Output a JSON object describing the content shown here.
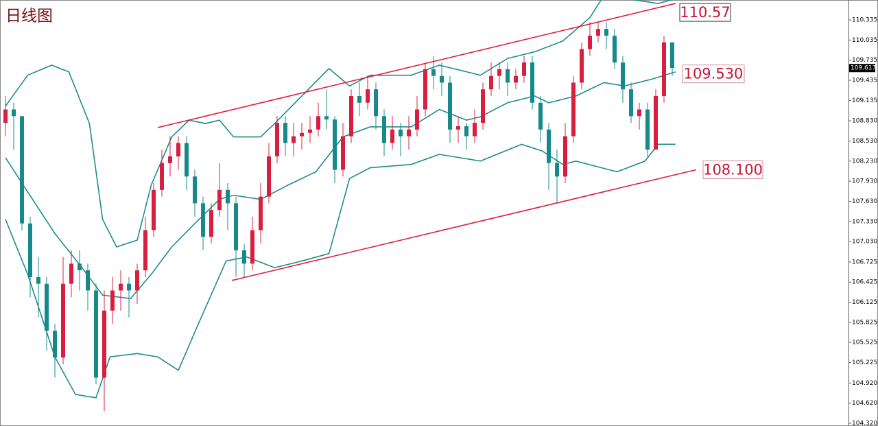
{
  "chart_data": {
    "type": "candlestick",
    "title": "日线图",
    "up_color": "#d91f3f",
    "down_color": "#17898a",
    "open": [
      108.8,
      109.0,
      108.9,
      107.3,
      106.5,
      106.4,
      105.7,
      105.3,
      106.4,
      106.7,
      106.6,
      106.3,
      105.0,
      106.0,
      106.3,
      106.4,
      106.3,
      106.6,
      107.2,
      107.8,
      108.2,
      108.3,
      108.5,
      108.0,
      107.6,
      107.1,
      107.5,
      107.8,
      107.6,
      106.9,
      106.7,
      107.2,
      107.7,
      108.3,
      108.8,
      108.5,
      108.6,
      108.65,
      108.7,
      108.9,
      108.85,
      108.1,
      108.6,
      109.2,
      109.1,
      109.3,
      108.9,
      108.5,
      108.7,
      108.6,
      108.7,
      109.0,
      109.6,
      109.5,
      109.4,
      108.7,
      108.75,
      108.6,
      108.8,
      109.3,
      109.5,
      109.6,
      109.4,
      109.5,
      109.7,
      109.1,
      108.7,
      108.2,
      108.0,
      108.6,
      109.4,
      109.9,
      110.1,
      110.2,
      110.1,
      109.7,
      109.3,
      108.9,
      109.0,
      108.4,
      109.2,
      110.0
    ],
    "high": [
      109.2,
      109.1,
      108.9,
      107.4,
      106.8,
      106.5,
      105.8,
      106.8,
      106.9,
      106.9,
      106.7,
      106.4,
      106.3,
      106.5,
      106.6,
      106.5,
      106.7,
      107.4,
      107.9,
      108.4,
      108.6,
      108.6,
      108.6,
      108.1,
      107.7,
      107.6,
      108.2,
      107.9,
      107.7,
      107.0,
      107.4,
      107.9,
      108.5,
      108.9,
      108.9,
      108.8,
      108.8,
      108.9,
      109.1,
      109.3,
      108.9,
      108.8,
      109.3,
      109.4,
      109.5,
      109.4,
      109.0,
      108.9,
      108.8,
      108.9,
      109.2,
      109.7,
      109.8,
      109.7,
      109.5,
      108.9,
      108.8,
      109.0,
      109.4,
      109.7,
      109.7,
      109.7,
      109.6,
      109.8,
      109.8,
      109.2,
      108.8,
      108.4,
      108.8,
      109.5,
      110.0,
      110.3,
      110.3,
      110.3,
      110.2,
      109.8,
      109.4,
      109.1,
      109.1,
      109.3,
      110.1,
      110.0
    ],
    "low": [
      108.6,
      108.4,
      107.2,
      106.2,
      105.9,
      105.4,
      105.0,
      105.2,
      106.2,
      106.3,
      106.0,
      104.9,
      104.5,
      105.8,
      106.0,
      105.9,
      106.1,
      106.5,
      107.1,
      107.7,
      108.0,
      108.1,
      107.8,
      107.4,
      106.9,
      107.0,
      107.4,
      107.2,
      106.5,
      106.5,
      106.6,
      107.0,
      107.6,
      108.2,
      108.3,
      108.3,
      108.4,
      108.5,
      108.6,
      108.7,
      107.9,
      108.0,
      108.5,
      108.9,
      109.0,
      108.7,
      108.3,
      108.4,
      108.3,
      108.4,
      108.6,
      108.9,
      109.3,
      109.2,
      108.5,
      108.5,
      108.4,
      108.5,
      108.7,
      109.2,
      109.3,
      109.2,
      109.3,
      109.4,
      109.0,
      108.5,
      107.8,
      107.6,
      107.9,
      108.5,
      109.3,
      109.8,
      110.0,
      109.9,
      109.6,
      109.1,
      108.8,
      108.7,
      108.3,
      108.4,
      109.1,
      109.5
    ],
    "close": [
      109.0,
      108.9,
      107.3,
      106.5,
      106.4,
      105.7,
      105.3,
      106.4,
      106.7,
      106.6,
      106.3,
      105.0,
      106.0,
      106.3,
      106.4,
      106.3,
      106.6,
      107.2,
      107.8,
      108.2,
      108.3,
      108.5,
      108.0,
      107.6,
      107.1,
      107.5,
      107.8,
      107.6,
      106.9,
      106.7,
      107.2,
      107.7,
      108.3,
      108.8,
      108.5,
      108.6,
      108.65,
      108.7,
      108.9,
      108.85,
      108.1,
      108.6,
      109.2,
      109.1,
      109.3,
      108.9,
      108.5,
      108.7,
      108.6,
      108.7,
      109.0,
      109.6,
      109.5,
      109.4,
      108.7,
      108.75,
      108.6,
      108.8,
      109.3,
      109.5,
      109.6,
      109.4,
      109.5,
      109.7,
      109.1,
      108.7,
      108.2,
      108.0,
      108.6,
      109.4,
      109.9,
      110.1,
      110.2,
      110.1,
      109.7,
      109.3,
      108.9,
      109.0,
      108.4,
      109.2,
      110.0,
      109.617
    ],
    "bands": [
      {
        "color": "#1e8c8c",
        "x": [
          0,
          2.7,
          5.6,
          7.7,
          10.2,
          11.8,
          13.5,
          16,
          17.7,
          20.2,
          22.3,
          24.3,
          26,
          27.7,
          31,
          32.7,
          36,
          39.3,
          41.8,
          44.3,
          49.3,
          52.7,
          57.7,
          61,
          64.3,
          67.7,
          71,
          72.7,
          79.3,
          81.4
        ],
        "values": [
          109.05,
          109.51,
          109.66,
          109.56,
          108.79,
          107.36,
          106.95,
          107.05,
          107.87,
          108.59,
          108.84,
          108.79,
          108.84,
          108.59,
          108.59,
          108.79,
          109.2,
          109.61,
          109.35,
          109.51,
          109.51,
          109.66,
          109.51,
          109.76,
          109.86,
          110.02,
          110.37,
          110.7,
          110.58,
          110.65
        ]
      },
      {
        "color": "#1e8c8c",
        "x": [
          0,
          2.7,
          6,
          9.3,
          11.8,
          15.2,
          17.7,
          20.2,
          22.7,
          26,
          27.7,
          31,
          34.3,
          37.7,
          41,
          44.3,
          49.3,
          52.7,
          56,
          57.7,
          61,
          64.3,
          66,
          69.3,
          72.7,
          75.2,
          78.5,
          81.4
        ],
        "values": [
          108.28,
          107.77,
          107.15,
          106.64,
          106.23,
          106.18,
          106.54,
          106.95,
          107.26,
          107.66,
          107.72,
          107.66,
          107.87,
          108.07,
          108.59,
          108.74,
          108.74,
          109.0,
          108.84,
          108.89,
          109.1,
          109.2,
          109.1,
          109.2,
          109.4,
          109.35,
          109.45,
          109.56
        ]
      },
      {
        "color": "#1e8c8c",
        "x": [
          0,
          2.7,
          6,
          8.5,
          11,
          12.7,
          16,
          18.5,
          21,
          23.5,
          26.8,
          29.3,
          32.7,
          36,
          39.3,
          41.8,
          44.3,
          49.3,
          52.7,
          57.7,
          62.7,
          65.2,
          67.7,
          69.3,
          74.3,
          77.7,
          79.3,
          81.4
        ],
        "values": [
          107.36,
          106.54,
          105.31,
          104.75,
          104.7,
          105.31,
          105.36,
          105.31,
          105.11,
          105.82,
          106.74,
          106.8,
          106.64,
          106.74,
          106.85,
          107.97,
          108.13,
          108.18,
          108.33,
          108.23,
          108.48,
          108.38,
          108.18,
          108.23,
          108.07,
          108.23,
          108.48,
          108.48
        ]
      }
    ],
    "trendlines": [
      {
        "color": "#e0203c",
        "x": [
          18.5,
          81.4
        ],
        "values": [
          108.73,
          110.58
        ]
      },
      {
        "color": "#e0203c",
        "x": [
          27.5,
          83.9
        ],
        "values": [
          106.45,
          108.1
        ]
      }
    ],
    "price_labels": [
      110.57,
      {
        "value": 109.53,
        "label": "109.530"
      },
      {
        "value": 108.1,
        "label": "108.100"
      }
    ],
    "last_price": 109.617,
    "ylim": [
      104.279,
      110.632
    ],
    "yticks": [
      110.335,
      110.035,
      109.735,
      109.435,
      109.135,
      {
        "value": 108.83,
        "label": "108.830"
      },
      {
        "value": 108.53,
        "label": "108.530"
      },
      {
        "value": 108.23,
        "label": "108.230"
      },
      {
        "value": 107.93,
        "label": "107.930"
      },
      {
        "value": 107.63,
        "label": "107.630"
      },
      {
        "value": 107.33,
        "label": "107.330"
      },
      {
        "value": 107.03,
        "label": "107.030"
      },
      106.725,
      106.425,
      106.125,
      105.825,
      105.525,
      105.225,
      {
        "value": 104.92,
        "label": "104.920"
      },
      {
        "value": 104.62,
        "label": "104.620"
      },
      {
        "value": 104.32,
        "label": "104.320"
      }
    ]
  }
}
